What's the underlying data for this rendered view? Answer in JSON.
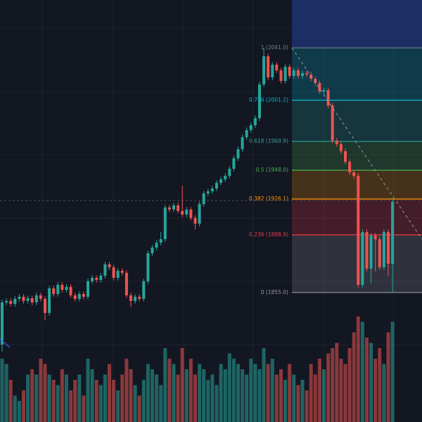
{
  "chart_data": {
    "type": "candlestick",
    "ylim": [
      1756.6,
      2077.4
    ],
    "up_color": "#26a69a",
    "down_color": "#ef5350",
    "open": [
      1815.4,
      1847.5,
      1848.6,
      1846.4,
      1850.2,
      1851.8,
      1848.6,
      1850.7,
      1847.5,
      1852.9,
      1850.2,
      1839.5,
      1858.2,
      1853.9,
      1860.9,
      1857.1,
      1859.3,
      1852.9,
      1850.2,
      1853.9,
      1851.8,
      1863.6,
      1866.2,
      1864.6,
      1867.8,
      1876.4,
      1874.2,
      1866.2,
      1871.6,
      1870.0,
      1852.9,
      1848.6,
      1851.8,
      1850.2,
      1863.6,
      1884.9,
      1889.2,
      1892.9,
      1895.6,
      1919.7,
      1918.1,
      1921.3,
      1917.0,
      1914.3,
      1918.1,
      1911.7,
      1907.4,
      1922.3,
      1930.4,
      1932.0,
      1934.1,
      1938.4,
      1941.1,
      1943.7,
      1949.1,
      1957.1,
      1964.0,
      1973.1,
      1978.5,
      1982.2,
      1987.6,
      2013.2,
      2034.6,
      2018.6,
      2028.2,
      2023.9,
      2015.9,
      2026.6,
      2019.6,
      2023.9,
      2019.6,
      2021.8,
      2020.7,
      2017.5,
      2014.3,
      2007.9,
      2008.9,
      1997.2,
      1970.5,
      1967.8,
      1962.4,
      1954.4,
      1946.4,
      1943.7,
      1860.9,
      1901.0,
      1873.2,
      1898.3,
      1895.6,
      1874.2,
      1901.0,
      1876.9
    ],
    "high": [
      1849.5,
      1850.6,
      1850.6,
      1852.2,
      1853.8,
      1853.8,
      1852.7,
      1852.7,
      1854.9,
      1854.9,
      1852.2,
      1860.2,
      1860.2,
      1862.9,
      1862.9,
      1861.3,
      1861.3,
      1854.9,
      1855.9,
      1855.9,
      1865.6,
      1868.2,
      1868.2,
      1869.8,
      1878.4,
      1878.4,
      1876.2,
      1873.6,
      1873.6,
      1872.0,
      1854.9,
      1853.8,
      1853.8,
      1865.6,
      1886.9,
      1891.2,
      1894.9,
      1901.0,
      1921.7,
      1921.7,
      1923.3,
      1923.3,
      1936.0,
      1920.1,
      1920.1,
      1913.7,
      1924.3,
      1932.4,
      1934.0,
      1936.1,
      1940.4,
      1943.1,
      1945.7,
      1951.1,
      1959.1,
      1966.0,
      1975.1,
      1980.5,
      1984.2,
      1989.6,
      2015.2,
      2041.0,
      2036.6,
      2030.2,
      2030.2,
      2025.9,
      2028.6,
      2028.6,
      2025.9,
      2025.9,
      2023.8,
      2023.8,
      2022.7,
      2019.5,
      2016.3,
      2010.9,
      2010.9,
      1999.2,
      1972.5,
      1969.8,
      1964.4,
      1956.4,
      1948.4,
      1945.7,
      1903.0,
      1903.0,
      1900.3,
      1900.3,
      1897.6,
      1903.0,
      1903.0,
      1926.0
    ],
    "low": [
      1810.0,
      1845.5,
      1844.4,
      1844.4,
      1848.2,
      1846.6,
      1846.6,
      1845.5,
      1845.5,
      1848.2,
      1834.0,
      1837.5,
      1851.9,
      1851.9,
      1855.1,
      1855.1,
      1850.9,
      1848.2,
      1848.2,
      1849.8,
      1849.8,
      1861.6,
      1862.6,
      1862.6,
      1865.8,
      1872.2,
      1864.2,
      1864.2,
      1868.0,
      1850.9,
      1844.0,
      1846.6,
      1848.2,
      1848.2,
      1861.6,
      1882.9,
      1887.2,
      1890.9,
      1893.6,
      1916.1,
      1916.1,
      1915.0,
      1912.3,
      1912.3,
      1909.7,
      1903.0,
      1905.4,
      1920.3,
      1928.4,
      1930.0,
      1932.1,
      1936.4,
      1939.1,
      1941.7,
      1947.1,
      1955.1,
      1962.0,
      1971.1,
      1976.5,
      1980.2,
      1985.6,
      2011.2,
      2016.6,
      2016.6,
      2021.9,
      2013.9,
      2013.9,
      2017.6,
      2017.6,
      2017.6,
      2017.6,
      2018.7,
      2015.5,
      2012.3,
      2005.9,
      2005.9,
      1995.2,
      1968.5,
      1965.8,
      1960.4,
      1952.4,
      1944.4,
      1941.7,
      1858.9,
      1858.9,
      1871.2,
      1862.0,
      1871.0,
      1872.2,
      1872.2,
      1868.0,
      1855.0
    ],
    "close": [
      1847.5,
      1848.6,
      1846.4,
      1850.2,
      1851.8,
      1848.6,
      1850.7,
      1847.5,
      1852.9,
      1850.2,
      1839.5,
      1858.2,
      1853.9,
      1860.9,
      1857.1,
      1859.3,
      1852.9,
      1850.2,
      1853.9,
      1851.8,
      1863.6,
      1866.2,
      1864.6,
      1867.8,
      1876.4,
      1874.2,
      1866.2,
      1871.6,
      1870.0,
      1852.9,
      1848.6,
      1851.8,
      1850.2,
      1863.6,
      1884.9,
      1889.2,
      1892.9,
      1895.6,
      1919.7,
      1918.1,
      1921.3,
      1917.0,
      1914.3,
      1918.1,
      1911.7,
      1907.4,
      1922.3,
      1930.4,
      1932.0,
      1934.1,
      1938.4,
      1941.1,
      1943.7,
      1949.1,
      1957.1,
      1964.0,
      1973.1,
      1978.5,
      1982.2,
      1987.6,
      2013.2,
      2034.6,
      2018.6,
      2028.2,
      2023.9,
      2015.9,
      2026.6,
      2019.6,
      2023.9,
      2019.6,
      2021.8,
      2020.7,
      2017.5,
      2014.3,
      2007.9,
      2008.9,
      1997.2,
      1970.5,
      1967.8,
      1962.4,
      1954.4,
      1946.4,
      1943.7,
      1860.9,
      1901.0,
      1873.2,
      1898.3,
      1895.6,
      1874.2,
      1901.0,
      1876.9,
      1924.0
    ],
    "volume": [
      60,
      55,
      40,
      25,
      20,
      30,
      45,
      50,
      45,
      60,
      55,
      45,
      40,
      35,
      50,
      45,
      30,
      40,
      45,
      25,
      60,
      50,
      40,
      35,
      45,
      55,
      40,
      30,
      45,
      60,
      50,
      35,
      25,
      40,
      55,
      50,
      45,
      35,
      70,
      60,
      55,
      45,
      70,
      50,
      60,
      45,
      55,
      50,
      40,
      45,
      35,
      55,
      50,
      65,
      60,
      55,
      50,
      45,
      60,
      55,
      50,
      70,
      55,
      60,
      45,
      50,
      40,
      55,
      45,
      35,
      40,
      30,
      55,
      45,
      60,
      50,
      65,
      70,
      75,
      60,
      55,
      70,
      85,
      100,
      95,
      80,
      75,
      60,
      70,
      55,
      85,
      95
    ],
    "fib_levels": [
      {
        "value": 2041.0,
        "label": "1 (2041.0)",
        "color": "#787b86"
      },
      {
        "value": 2001.2,
        "label": "0.786 (2001.2)",
        "color": "#00bcd4"
      },
      {
        "value": 1969.9,
        "label": "0.618 (1969.9)",
        "color": "#26a69a"
      },
      {
        "value": 1948.0,
        "label": "0.5 (1948.0)",
        "color": "#4caf50"
      },
      {
        "value": 1926.1,
        "label": "0.382 (1926.1)",
        "color": "#ff9800"
      },
      {
        "value": 1898.9,
        "label": "0.236 (1898.9)",
        "color": "#f23645"
      },
      {
        "value": 1855.0,
        "label": "0 (1855.0)",
        "color": "#9598a1"
      }
    ]
  }
}
